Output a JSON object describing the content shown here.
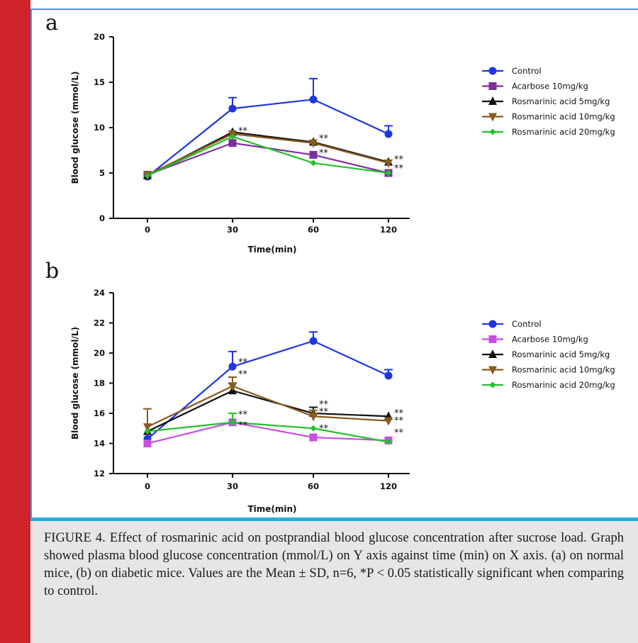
{
  "chart_data": [
    {
      "type": "line",
      "panel_label": "a",
      "xlabel": "Time(min)",
      "ylabel": "Blood glucose (mmol/L)",
      "x": [
        "0",
        "30",
        "60",
        "120"
      ],
      "ylim": [
        0,
        20
      ],
      "yticks": [
        "0",
        "5",
        "10",
        "15",
        "20"
      ],
      "legend_position": "right",
      "series": [
        {
          "name": "Control",
          "color": "#1f35e0",
          "marker": "circle",
          "values": [
            4.6,
            12.1,
            13.1,
            9.3
          ],
          "error": [
            0,
            1.2,
            2.3,
            0.9
          ]
        },
        {
          "name": "Acarbose 10mg/kg",
          "color": "#7d2fa0",
          "marker": "square",
          "values": [
            4.8,
            8.3,
            7.0,
            5.0
          ],
          "error": [
            0,
            0,
            0,
            0
          ]
        },
        {
          "name": "Rosmarinic acid 5mg/kg",
          "color": "#111111",
          "marker": "triangle-up",
          "values": [
            4.7,
            9.5,
            8.4,
            6.2
          ],
          "error": [
            0,
            0,
            0,
            0
          ]
        },
        {
          "name": "Rosmarinic acid 10mg/kg",
          "color": "#8b5a1e",
          "marker": "triangle-down",
          "values": [
            4.8,
            9.3,
            8.3,
            6.1
          ],
          "error": [
            0,
            0,
            0,
            0
          ]
        },
        {
          "name": "Rosmarinic acid 20mg/kg",
          "color": "#22c02a",
          "marker": "diamond",
          "values": [
            4.7,
            9.0,
            6.1,
            5.0
          ],
          "error": [
            0,
            0,
            0,
            0
          ]
        }
      ],
      "annotations": [
        {
          "x": "30",
          "y": 9.6,
          "text": "**"
        },
        {
          "x": "60",
          "y": 8.8,
          "text": "**"
        },
        {
          "x": "60",
          "y": 7.2,
          "text": "**"
        },
        {
          "x": "120",
          "y": 6.5,
          "text": "**"
        },
        {
          "x": "120",
          "y": 5.5,
          "text": "**"
        }
      ]
    },
    {
      "type": "line",
      "panel_label": "b",
      "xlabel": "Time(min)",
      "ylabel": "Blood glucose (mmol/L)",
      "x": [
        "0",
        "30",
        "60",
        "120"
      ],
      "ylim": [
        12,
        24
      ],
      "yticks": [
        "12",
        "14",
        "16",
        "18",
        "20",
        "22",
        "24"
      ],
      "legend_position": "right",
      "series": [
        {
          "name": "Control",
          "color": "#1f35e0",
          "marker": "circle",
          "values": [
            14.3,
            19.1,
            20.8,
            18.5
          ],
          "error": [
            0,
            1.0,
            0.6,
            0.4
          ]
        },
        {
          "name": "Acarbose 10mg/kg",
          "color": "#c84fe0",
          "marker": "square",
          "values": [
            14.0,
            15.4,
            14.4,
            14.2
          ],
          "error": [
            0,
            0,
            0,
            0
          ]
        },
        {
          "name": "Rosmarinic acid 5mg/kg",
          "color": "#111111",
          "marker": "triangle-up",
          "values": [
            14.8,
            17.5,
            16.0,
            15.8
          ],
          "error": [
            0,
            0.5,
            0.4,
            0
          ]
        },
        {
          "name": "Rosmarinic acid 10mg/kg",
          "color": "#8b5a1e",
          "marker": "triangle-down",
          "values": [
            15.1,
            17.8,
            15.8,
            15.5
          ],
          "error": [
            1.2,
            0.6,
            0.4,
            0
          ]
        },
        {
          "name": "Rosmarinic acid 20mg/kg",
          "color": "#22c02a",
          "marker": "diamond",
          "values": [
            14.8,
            15.4,
            15.0,
            14.1
          ],
          "error": [
            0,
            0.6,
            0,
            0
          ]
        }
      ],
      "annotations": [
        {
          "x": "30",
          "y": 19.4,
          "text": "**"
        },
        {
          "x": "30",
          "y": 18.6,
          "text": "**"
        },
        {
          "x": "30",
          "y": 15.9,
          "text": "**"
        },
        {
          "x": "30",
          "y": 15.2,
          "text": "**"
        },
        {
          "x": "60",
          "y": 16.6,
          "text": "**"
        },
        {
          "x": "60",
          "y": 16.1,
          "text": "**"
        },
        {
          "x": "60",
          "y": 15.0,
          "text": "**"
        },
        {
          "x": "120",
          "y": 16.0,
          "text": "**"
        },
        {
          "x": "120",
          "y": 15.5,
          "text": "**"
        },
        {
          "x": "120",
          "y": 14.7,
          "text": "**"
        }
      ]
    }
  ],
  "caption": "FIGURE 4. Effect of rosmarinic acid on postprandial blood glucose concentration after sucrose load. Graph showed plasma blood glucose concentration (mmol/L) on Y axis against time (min) on X axis. (a) on normal mice, (b) on diabetic mice. Values are the Mean ± SD, n=6, *P < 0.05 statistically significant when comparing to control."
}
